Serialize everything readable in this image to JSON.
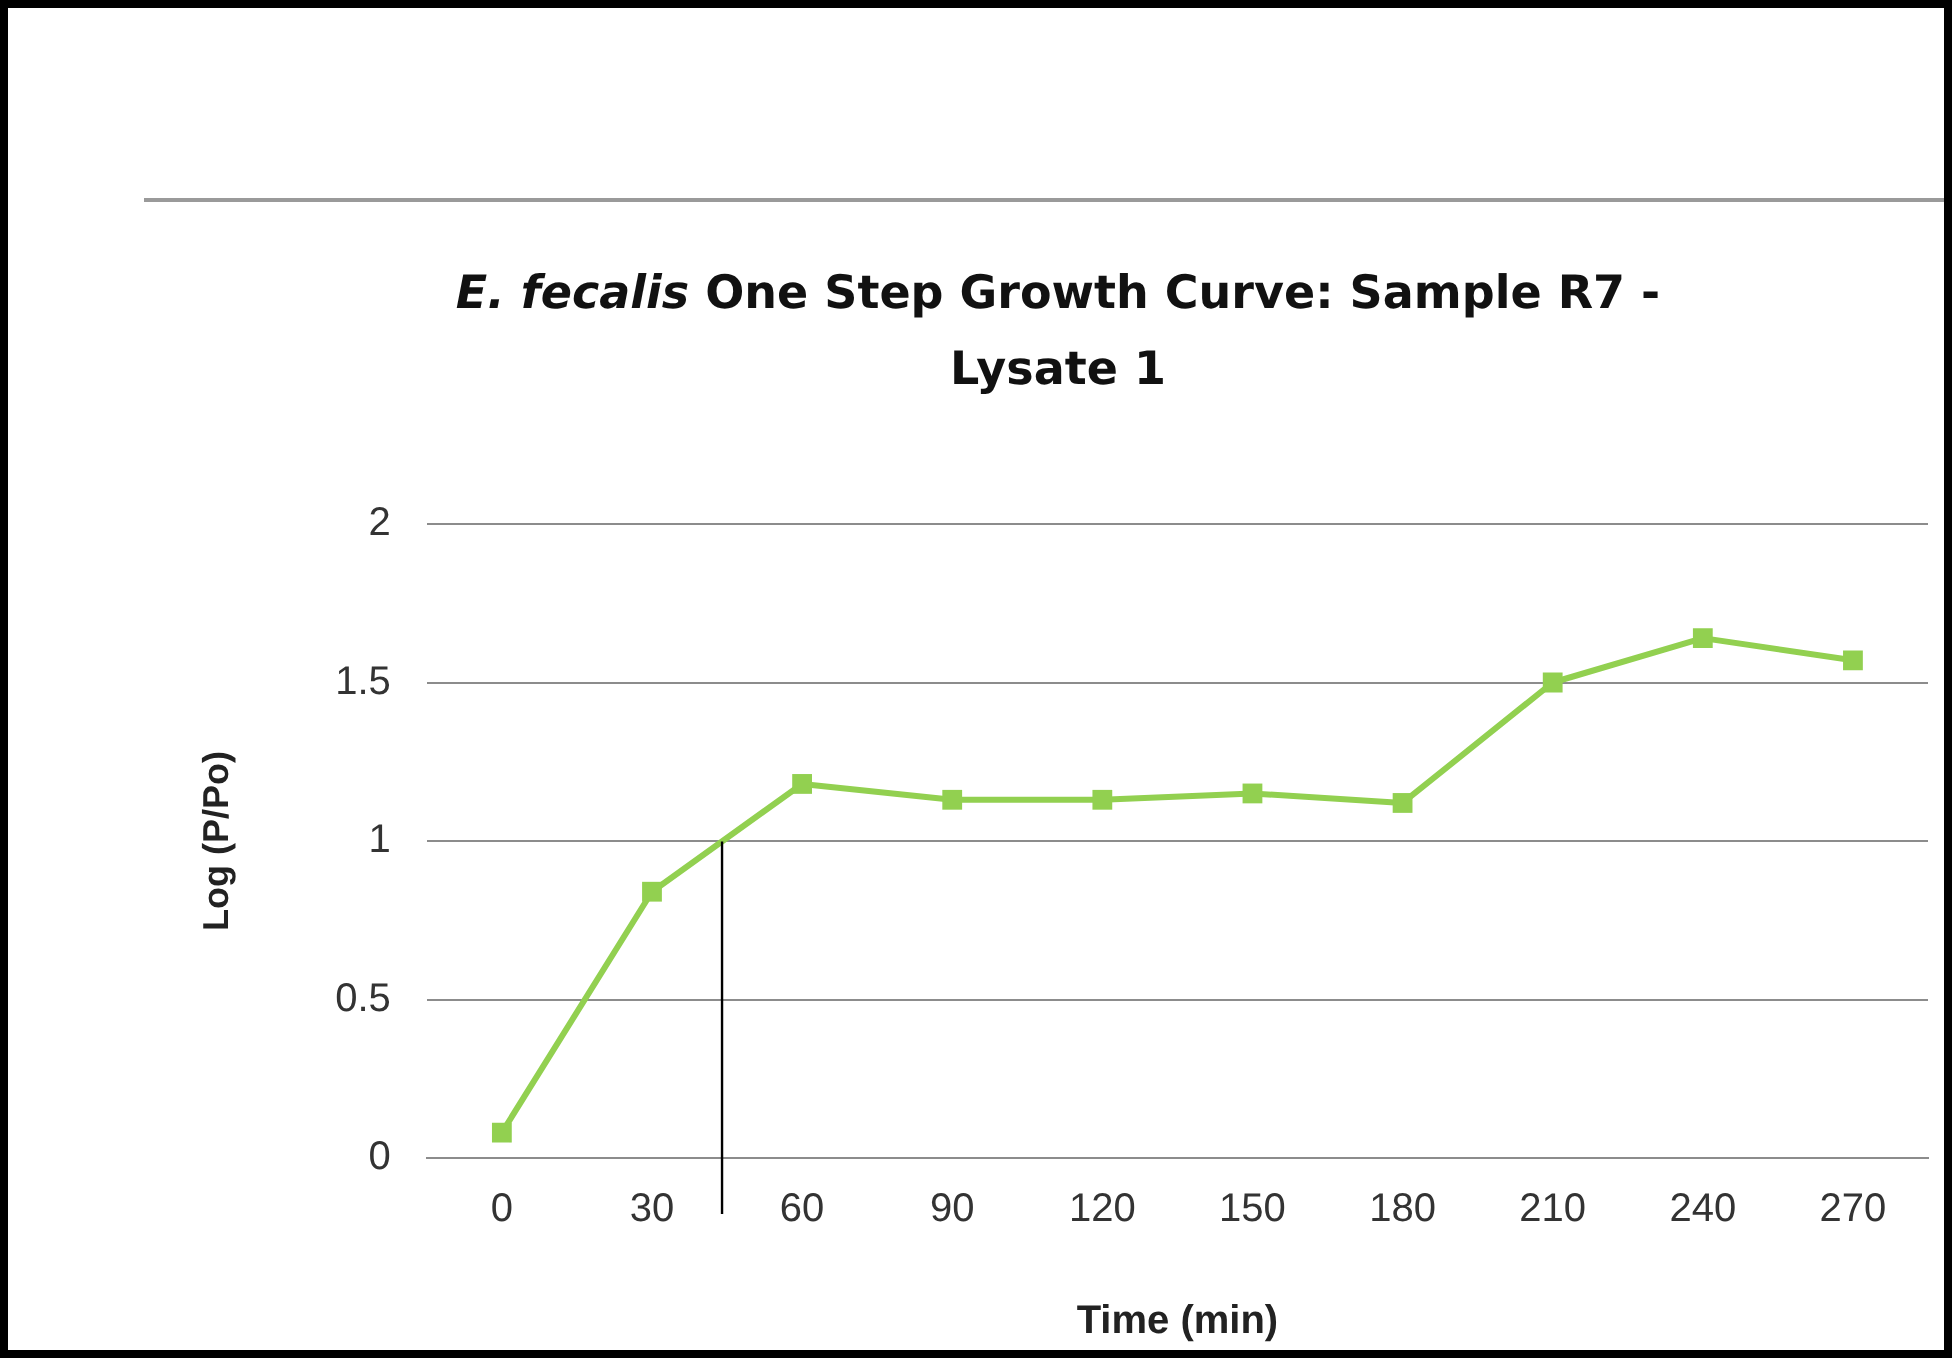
{
  "chart_data": {
    "type": "line",
    "title": "E. fecalis One Step Growth Curve: Sample R7 - Lysate 1",
    "xlabel": "Time (min)",
    "ylabel": "Log (P/Po)",
    "x": [
      0,
      30,
      60,
      90,
      120,
      150,
      180,
      210,
      240,
      270
    ],
    "series": [
      {
        "color": "#92d050",
        "values": [
          0.08,
          0.84,
          1.18,
          1.13,
          1.13,
          1.15,
          1.12,
          1.5,
          1.64,
          1.57
        ]
      }
    ],
    "xlim": [
      -15,
      285
    ],
    "xticks": [
      0,
      30,
      60,
      90,
      120,
      150,
      180,
      210,
      240,
      270
    ],
    "ylim": [
      0,
      2
    ],
    "yticks": [
      0,
      0.5,
      1,
      1.5,
      2
    ],
    "ref_lines": [
      {
        "axis": "x",
        "value": 44,
        "color": "#000000"
      }
    ],
    "grid": "y",
    "legend": false,
    "marker": "square",
    "line_style": "solid"
  }
}
